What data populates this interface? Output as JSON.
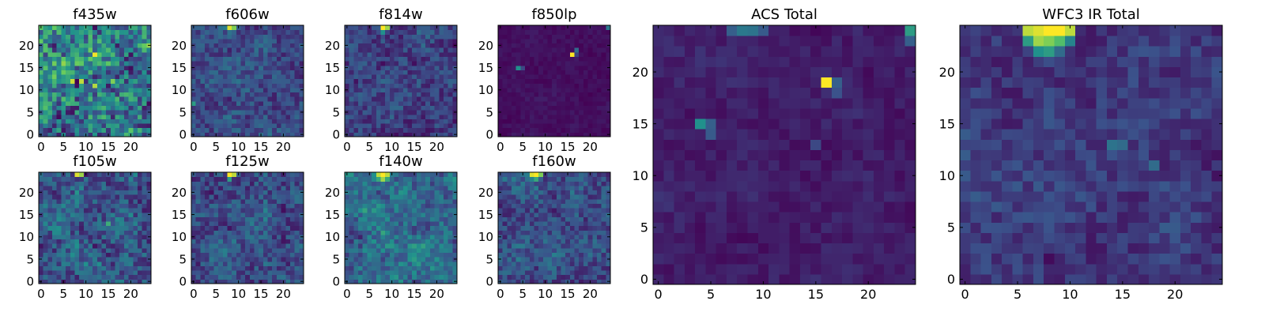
{
  "colormap": [
    "#440154",
    "#3b528b",
    "#21918c",
    "#5ec962",
    "#fde725"
  ],
  "chart_data": [
    {
      "id": "f435w",
      "type": "heatmap",
      "title": "f435w",
      "grid_size": 25,
      "xlim": [
        0,
        25
      ],
      "ylim": [
        0,
        25
      ],
      "xticks": [
        0,
        5,
        10,
        15,
        20
      ],
      "yticks": [
        0,
        5,
        10,
        15,
        20
      ],
      "xlabel": "",
      "ylabel": "",
      "texture": {
        "base": 0.42,
        "noise": 0.34,
        "seed": 11
      },
      "bright_pixels": [
        {
          "x": 12,
          "y": 18,
          "v": 0.98
        },
        {
          "x": 7,
          "y": 12,
          "v": 0.92
        },
        {
          "x": 9,
          "y": 12,
          "v": 0.9
        },
        {
          "x": 12,
          "y": 11,
          "v": 0.88
        },
        {
          "x": 16,
          "y": 12,
          "v": 0.8
        },
        {
          "x": 3,
          "y": 13,
          "v": 0.78
        },
        {
          "x": 5,
          "y": 2,
          "v": 0.14
        },
        {
          "x": 4,
          "y": 0,
          "v": 0.1
        }
      ]
    },
    {
      "id": "f606w",
      "type": "heatmap",
      "title": "f606w",
      "grid_size": 25,
      "xlim": [
        0,
        25
      ],
      "ylim": [
        0,
        25
      ],
      "xticks": [
        0,
        5,
        10,
        15,
        20
      ],
      "yticks": [
        0,
        5,
        10,
        15,
        20
      ],
      "xlabel": "",
      "ylabel": "",
      "texture": {
        "base": 0.24,
        "noise": 0.14,
        "seed": 23
      },
      "bright_pixels": [
        {
          "x": 8,
          "y": 24,
          "v": 0.95
        },
        {
          "x": 9,
          "y": 24,
          "v": 0.8
        },
        {
          "x": 0,
          "y": 7,
          "v": 0.55
        }
      ]
    },
    {
      "id": "f814w",
      "type": "heatmap",
      "title": "f814w",
      "grid_size": 25,
      "xlim": [
        0,
        25
      ],
      "ylim": [
        0,
        25
      ],
      "xticks": [
        0,
        5,
        10,
        15,
        20
      ],
      "yticks": [
        0,
        5,
        10,
        15,
        20
      ],
      "xlabel": "",
      "ylabel": "",
      "texture": {
        "base": 0.2,
        "noise": 0.14,
        "seed": 37
      },
      "bright_pixels": [
        {
          "x": 8,
          "y": 24,
          "v": 1.0
        },
        {
          "x": 9,
          "y": 24,
          "v": 0.85
        },
        {
          "x": 8,
          "y": 23,
          "v": 0.5
        }
      ]
    },
    {
      "id": "f850lp",
      "type": "heatmap",
      "title": "f850lp",
      "grid_size": 25,
      "xlim": [
        0,
        25
      ],
      "ylim": [
        0,
        25
      ],
      "xticks": [
        0,
        5,
        10,
        15,
        20
      ],
      "yticks": [
        0,
        5,
        10,
        15,
        20
      ],
      "xlabel": "",
      "ylabel": "",
      "texture": {
        "base": 0.04,
        "noise": 0.04,
        "seed": 41
      },
      "bright_pixels": [
        {
          "x": 16,
          "y": 18,
          "v": 1.0
        },
        {
          "x": 17,
          "y": 19,
          "v": 0.35
        },
        {
          "x": 17,
          "y": 18,
          "v": 0.2
        },
        {
          "x": 4,
          "y": 15,
          "v": 0.5
        },
        {
          "x": 5,
          "y": 15,
          "v": 0.22
        },
        {
          "x": 24,
          "y": 24,
          "v": 0.4
        }
      ]
    },
    {
      "id": "f105w",
      "type": "heatmap",
      "title": "f105w",
      "grid_size": 25,
      "xlim": [
        0,
        25
      ],
      "ylim": [
        0,
        25
      ],
      "xticks": [
        0,
        5,
        10,
        15,
        20
      ],
      "yticks": [
        0,
        5,
        10,
        15,
        20
      ],
      "xlabel": "",
      "ylabel": "",
      "texture": {
        "base": 0.3,
        "noise": 0.2,
        "seed": 53
      },
      "bright_pixels": [
        {
          "x": 8,
          "y": 24,
          "v": 0.95
        },
        {
          "x": 9,
          "y": 24,
          "v": 0.85
        },
        {
          "x": 15,
          "y": 13,
          "v": 0.62
        }
      ]
    },
    {
      "id": "f125w",
      "type": "heatmap",
      "title": "f125w",
      "grid_size": 25,
      "xlim": [
        0,
        25
      ],
      "ylim": [
        0,
        25
      ],
      "xticks": [
        0,
        5,
        10,
        15,
        20
      ],
      "yticks": [
        0,
        5,
        10,
        15,
        20
      ],
      "xlabel": "",
      "ylabel": "",
      "texture": {
        "base": 0.26,
        "noise": 0.16,
        "seed": 67
      },
      "bright_pixels": [
        {
          "x": 8,
          "y": 24,
          "v": 1.0
        },
        {
          "x": 9,
          "y": 24,
          "v": 0.9
        },
        {
          "x": 8,
          "y": 23,
          "v": 0.55
        }
      ]
    },
    {
      "id": "f140w",
      "type": "heatmap",
      "title": "f140w",
      "grid_size": 25,
      "xlim": [
        0,
        25
      ],
      "ylim": [
        0,
        25
      ],
      "xticks": [
        0,
        5,
        10,
        15,
        20
      ],
      "yticks": [
        0,
        5,
        10,
        15,
        20
      ],
      "xlabel": "",
      "ylabel": "",
      "texture": {
        "base": 0.36,
        "noise": 0.18,
        "seed": 79
      },
      "bright_pixels": [
        {
          "x": 7,
          "y": 24,
          "v": 0.9
        },
        {
          "x": 8,
          "y": 24,
          "v": 1.0
        },
        {
          "x": 9,
          "y": 24,
          "v": 0.9
        },
        {
          "x": 8,
          "y": 23,
          "v": 0.85
        },
        {
          "x": 7,
          "y": 23,
          "v": 0.6
        },
        {
          "x": 9,
          "y": 23,
          "v": 0.6
        },
        {
          "x": 3,
          "y": 10,
          "v": 0.1
        }
      ]
    },
    {
      "id": "f160w",
      "type": "heatmap",
      "title": "f160w",
      "grid_size": 25,
      "xlim": [
        0,
        25
      ],
      "ylim": [
        0,
        25
      ],
      "xticks": [
        0,
        5,
        10,
        15,
        20
      ],
      "yticks": [
        0,
        5,
        10,
        15,
        20
      ],
      "xlabel": "",
      "ylabel": "",
      "texture": {
        "base": 0.26,
        "noise": 0.15,
        "seed": 97
      },
      "bright_pixels": [
        {
          "x": 7,
          "y": 24,
          "v": 0.95
        },
        {
          "x": 8,
          "y": 24,
          "v": 1.0
        },
        {
          "x": 9,
          "y": 24,
          "v": 0.8
        },
        {
          "x": 8,
          "y": 23,
          "v": 0.6
        },
        {
          "x": 7,
          "y": 23,
          "v": 0.45
        }
      ]
    },
    {
      "id": "acs_total",
      "type": "heatmap",
      "title": "ACS Total",
      "grid_size": 25,
      "xlim": [
        0,
        25
      ],
      "ylim": [
        0,
        25
      ],
      "xticks": [
        0,
        5,
        10,
        15,
        20
      ],
      "yticks": [
        0,
        5,
        10,
        15,
        20
      ],
      "xlabel": "",
      "ylabel": "",
      "texture": {
        "base": 0.09,
        "noise": 0.06,
        "seed": 131
      },
      "bright_pixels": [
        {
          "x": 16,
          "y": 19,
          "v": 1.0
        },
        {
          "x": 17,
          "y": 19,
          "v": 0.3
        },
        {
          "x": 17,
          "y": 18,
          "v": 0.25
        },
        {
          "x": 4,
          "y": 15,
          "v": 0.5
        },
        {
          "x": 5,
          "y": 15,
          "v": 0.3
        },
        {
          "x": 5,
          "y": 14,
          "v": 0.28
        },
        {
          "x": 24,
          "y": 24,
          "v": 0.55
        },
        {
          "x": 24,
          "y": 23,
          "v": 0.3
        },
        {
          "x": 8,
          "y": 24,
          "v": 0.4
        },
        {
          "x": 9,
          "y": 24,
          "v": 0.38
        },
        {
          "x": 7,
          "y": 24,
          "v": 0.3
        },
        {
          "x": 10,
          "y": 24,
          "v": 0.28
        },
        {
          "x": 15,
          "y": 13,
          "v": 0.22
        }
      ]
    },
    {
      "id": "wfc3_ir_total",
      "type": "heatmap",
      "title": "WFC3 IR Total",
      "grid_size": 25,
      "xlim": [
        0,
        25
      ],
      "ylim": [
        0,
        25
      ],
      "xticks": [
        0,
        5,
        10,
        15,
        20
      ],
      "yticks": [
        0,
        5,
        10,
        15,
        20
      ],
      "xlabel": "",
      "ylabel": "",
      "texture": {
        "base": 0.18,
        "noise": 0.1,
        "seed": 157
      },
      "bright_pixels": [
        {
          "x": 6,
          "y": 24,
          "v": 0.9
        },
        {
          "x": 7,
          "y": 24,
          "v": 0.95
        },
        {
          "x": 8,
          "y": 24,
          "v": 1.0
        },
        {
          "x": 9,
          "y": 24,
          "v": 1.0
        },
        {
          "x": 10,
          "y": 24,
          "v": 0.9
        },
        {
          "x": 7,
          "y": 23,
          "v": 0.85
        },
        {
          "x": 8,
          "y": 23,
          "v": 0.8
        },
        {
          "x": 9,
          "y": 23,
          "v": 0.7
        },
        {
          "x": 6,
          "y": 23,
          "v": 0.55
        },
        {
          "x": 8,
          "y": 22,
          "v": 0.55
        },
        {
          "x": 7,
          "y": 22,
          "v": 0.5
        },
        {
          "x": 9,
          "y": 22,
          "v": 0.35
        },
        {
          "x": 10,
          "y": 23,
          "v": 0.45
        },
        {
          "x": 14,
          "y": 13,
          "v": 0.38
        },
        {
          "x": 15,
          "y": 13,
          "v": 0.35
        },
        {
          "x": 18,
          "y": 11,
          "v": 0.35
        },
        {
          "x": 8,
          "y": 2,
          "v": 0.03
        }
      ]
    }
  ]
}
